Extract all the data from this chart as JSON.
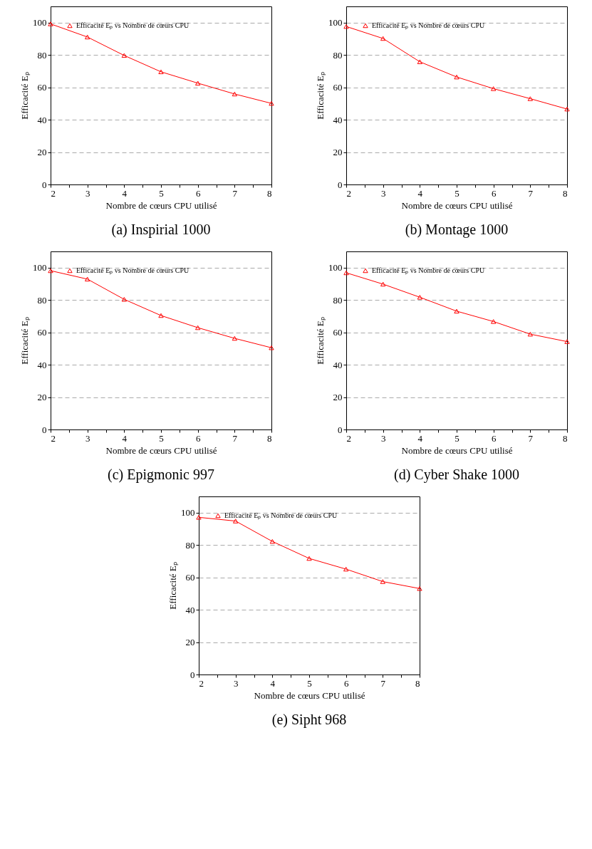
{
  "chart_data": [
    {
      "type": "line",
      "title": "(a) Inspirial 1000",
      "xlabel": "Nombre de cœurs CPU utilisé",
      "ylabel": "Efficacité Eₚ",
      "x": [
        2,
        3,
        4,
        5,
        6,
        7,
        8
      ],
      "series": [
        {
          "name": "Efficacité Eₚ vs Nombre de cœurs CPU",
          "color": "#ff0000",
          "values": [
            99.2,
            91.1,
            79.7,
            69.6,
            62.6,
            55.9,
            50.1
          ]
        }
      ],
      "xlim": [
        2,
        8
      ],
      "xticks": [
        2,
        {
          "value": 2.5,
          "label": null
        },
        3,
        {
          "value": 3.5,
          "label": null
        },
        4,
        {
          "value": 4.5,
          "label": null
        },
        5,
        {
          "value": 5.5,
          "label": null
        },
        6,
        {
          "value": 6.5,
          "label": null
        },
        7,
        {
          "value": 7.5,
          "label": null
        },
        8
      ],
      "ylim": [
        0,
        110
      ],
      "yticks": [
        0,
        20,
        40,
        60,
        80,
        100
      ],
      "grid": "y",
      "legend": "top left",
      "marker": "triangle",
      "line_style": "solid"
    },
    {
      "type": "line",
      "title": "(b) Montage 1000",
      "xlabel": "Nombre de cœurs CPU utilisé",
      "ylabel": "Efficacité Eₚ",
      "x": [
        2,
        3,
        4,
        5,
        6,
        7,
        8
      ],
      "series": [
        {
          "name": "Efficacité Eₚ vs Nombre de cœurs CPU",
          "color": "#ff0000",
          "values": [
            97.6,
            90.2,
            75.8,
            66.4,
            59.2,
            53.0,
            46.6
          ]
        }
      ],
      "xlim": [
        2,
        8
      ],
      "xticks": [
        2,
        {
          "value": 2.5,
          "label": null
        },
        3,
        {
          "value": 3.5,
          "label": null
        },
        4,
        {
          "value": 4.5,
          "label": null
        },
        5,
        {
          "value": 5.5,
          "label": null
        },
        6,
        {
          "value": 6.5,
          "label": null
        },
        7,
        {
          "value": 7.5,
          "label": null
        },
        8
      ],
      "ylim": [
        0,
        110
      ],
      "yticks": [
        0,
        20,
        40,
        60,
        80,
        100
      ],
      "grid": "y",
      "legend": "top left",
      "marker": "triangle",
      "line_style": "solid"
    },
    {
      "type": "line",
      "title": "(c) Epigmonic 997",
      "xlabel": "Nombre de cœurs CPU utilisé",
      "ylabel": "Efficacité Eₚ",
      "x": [
        2,
        3,
        4,
        5,
        6,
        7,
        8
      ],
      "series": [
        {
          "name": "Efficacité Eₚ vs Nombre de cœurs CPU",
          "color": "#ff0000",
          "values": [
            98.1,
            92.9,
            80.4,
            70.4,
            62.9,
            56.3,
            50.5
          ]
        }
      ],
      "xlim": [
        2,
        8
      ],
      "xticks": [
        2,
        {
          "value": 2.5,
          "label": null
        },
        3,
        {
          "value": 3.5,
          "label": null
        },
        4,
        {
          "value": 4.5,
          "label": null
        },
        5,
        {
          "value": 5.5,
          "label": null
        },
        6,
        {
          "value": 6.5,
          "label": null
        },
        7,
        {
          "value": 7.5,
          "label": null
        },
        8
      ],
      "ylim": [
        0,
        110
      ],
      "yticks": [
        0,
        20,
        40,
        60,
        80,
        100
      ],
      "grid": "y",
      "legend": "top left",
      "marker": "triangle",
      "line_style": "solid"
    },
    {
      "type": "line",
      "title": "(d) Cyber Shake 1000",
      "xlabel": "Nombre de cœurs CPU utilisé",
      "ylabel": "Efficacité Eₚ",
      "x": [
        2,
        3,
        4,
        5,
        6,
        7,
        8
      ],
      "series": [
        {
          "name": "Efficacité Eₚ vs Nombre de cœurs CPU",
          "color": "#ff0000",
          "values": [
            96.8,
            89.8,
            81.7,
            73.1,
            66.7,
            58.9,
            54.3
          ]
        }
      ],
      "xlim": [
        2,
        8
      ],
      "xticks": [
        2,
        {
          "value": 2.5,
          "label": null
        },
        3,
        {
          "value": 3.5,
          "label": null
        },
        4,
        {
          "value": 4.5,
          "label": null
        },
        5,
        {
          "value": 5.5,
          "label": null
        },
        6,
        {
          "value": 6.5,
          "label": null
        },
        7,
        {
          "value": 7.5,
          "label": null
        },
        8
      ],
      "ylim": [
        0,
        110
      ],
      "yticks": [
        0,
        20,
        40,
        60,
        80,
        100
      ],
      "grid": "y",
      "legend": "top left",
      "marker": "triangle",
      "line_style": "solid"
    },
    {
      "type": "line",
      "title": "(e) Sipht 968",
      "xlabel": "Nombre de cœurs CPU utilisé",
      "ylabel": "Efficacité Eₚ",
      "x": [
        2,
        3,
        4,
        5,
        6,
        7,
        8
      ],
      "series": [
        {
          "name": "Efficacité Eₚ vs Nombre de cœurs CPU",
          "color": "#ff0000",
          "values": [
            97.1,
            94.8,
            82.2,
            71.7,
            65.1,
            57.4,
            53.1
          ]
        }
      ],
      "xlim": [
        2,
        8
      ],
      "xticks": [
        2,
        {
          "value": 2.5,
          "label": null
        },
        3,
        {
          "value": 3.5,
          "label": null
        },
        4,
        {
          "value": 4.5,
          "label": null
        },
        5,
        {
          "value": 5.5,
          "label": null
        },
        6,
        {
          "value": 6.5,
          "label": null
        },
        7,
        {
          "value": 7.5,
          "label": null
        },
        8
      ],
      "ylim": [
        0,
        110
      ],
      "yticks": [
        0,
        20,
        40,
        60,
        80,
        100
      ],
      "grid": "y",
      "legend": "top left",
      "marker": "triangle",
      "line_style": "solid"
    }
  ]
}
